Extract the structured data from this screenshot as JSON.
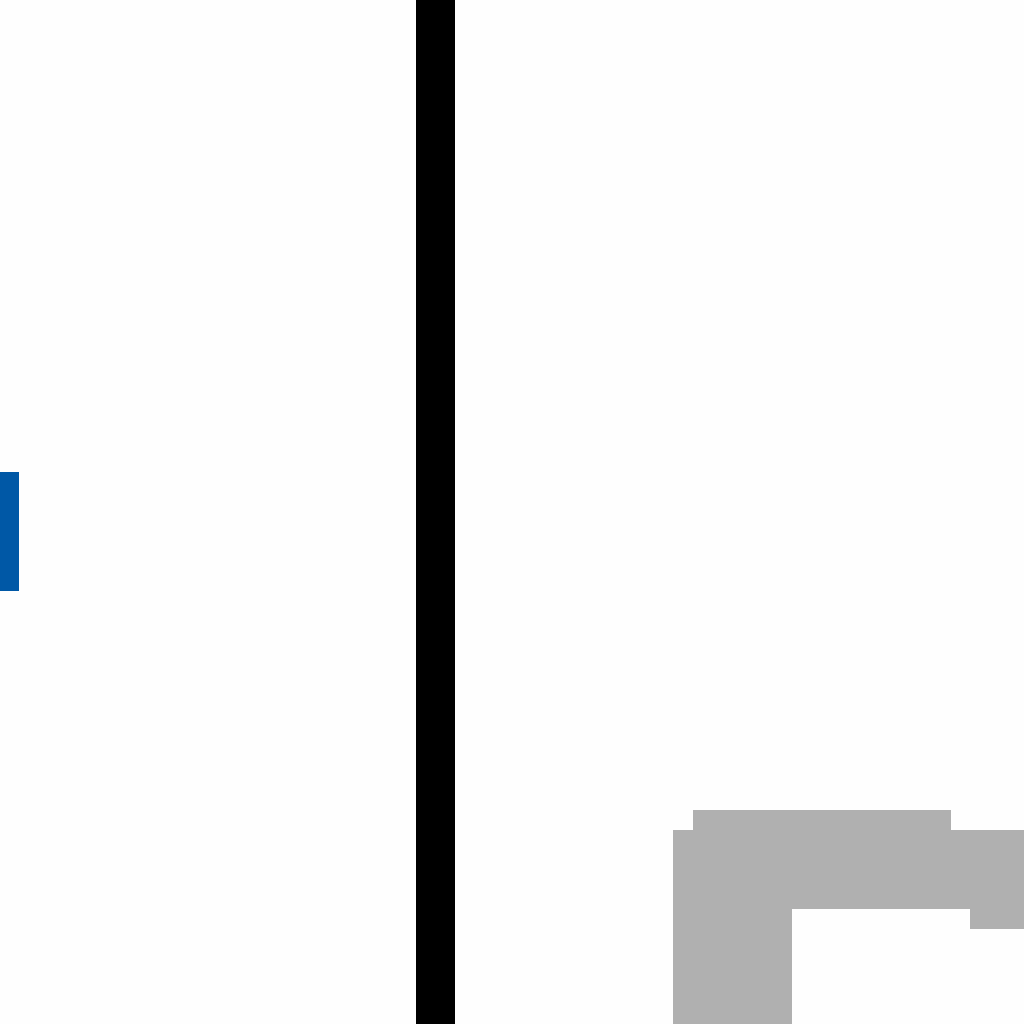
{
  "colors": {
    "background": "#fefefe",
    "divider": "#000000",
    "accent": "#0058a6",
    "shape": "#b0b0b0"
  },
  "icons": {
    "accent_tab": "accent-tab-icon",
    "corner_shape": "gray-corner-shape-icon"
  }
}
